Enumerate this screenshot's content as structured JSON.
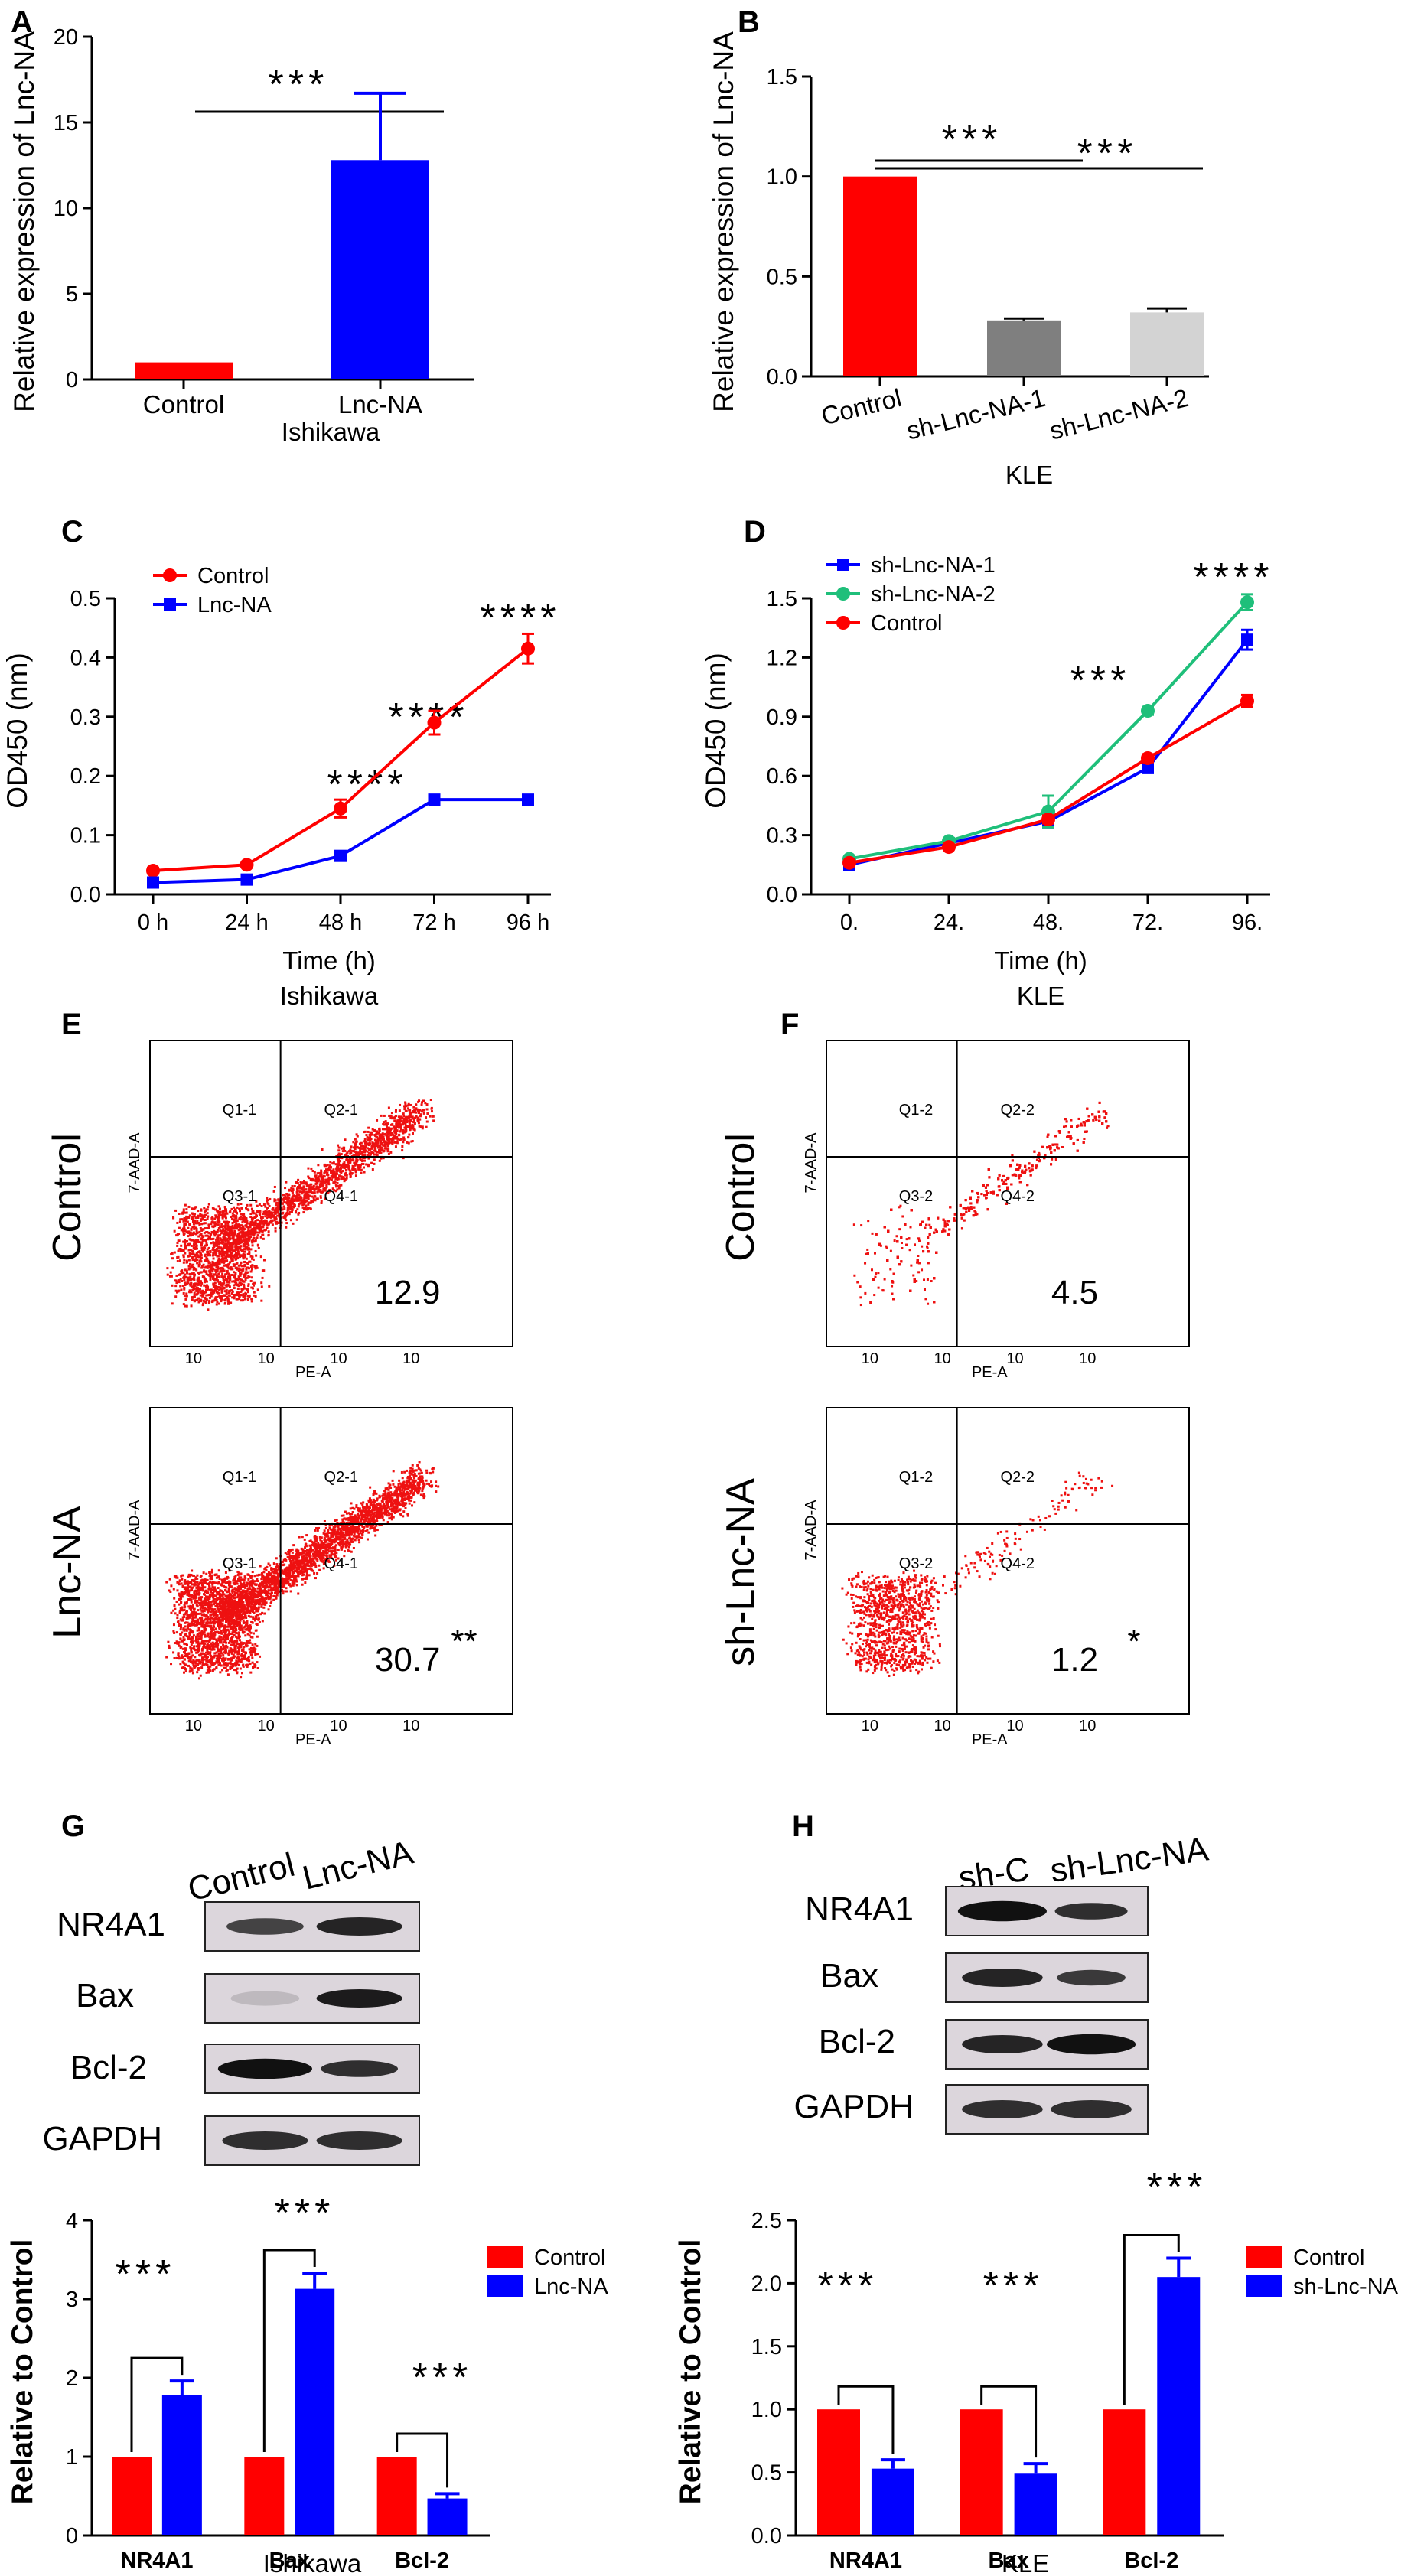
{
  "panels": {
    "A": {
      "label": "A",
      "ylabel": "Relative expression of Lnc-NA",
      "xlabel": "Ishikawa",
      "sig": "***"
    },
    "B": {
      "label": "B",
      "ylabel": "Relative expression of Lnc-NA",
      "xlabel": "KLE",
      "sig1": "***",
      "sig2": "***"
    },
    "C": {
      "label": "C",
      "ylabel": "OD450 (nm)",
      "xlabel": "Time (h)",
      "sublabel": "Ishikawa",
      "sig": [
        "****",
        "****",
        "****"
      ]
    },
    "D": {
      "label": "D",
      "ylabel": "OD450 (nm)",
      "xlabel": "Time (h)",
      "sublabel": "KLE",
      "sig": [
        "***",
        "****"
      ]
    },
    "E": {
      "label": "E",
      "row1": "Control",
      "row2": "Lnc-NA",
      "gates1": [
        "Q1-1",
        "Q2-1",
        "Q3-1",
        "Q4-1"
      ],
      "gates2": [
        "Q1-1",
        "Q2-1",
        "Q3-1",
        "Q4-1"
      ],
      "pct1": "12.9",
      "pct2": "30.7",
      "sig2": "**",
      "xaxis": "PE-A",
      "yaxis": "7-AAD-A"
    },
    "F": {
      "label": "F",
      "row1": "Control",
      "row2": "sh-Lnc-NA",
      "gates1": [
        "Q1-2",
        "Q2-2",
        "Q3-2",
        "Q4-2"
      ],
      "gates2": [
        "Q1-2",
        "Q2-2",
        "Q3-2",
        "Q4-2"
      ],
      "pct1": "4.5",
      "pct2": "1.2",
      "sig2": "*",
      "xaxis": "PE-A",
      "yaxis": "7-AAD-A"
    },
    "G": {
      "label": "G",
      "lanes": [
        "Control",
        "Lnc-NA"
      ],
      "proteins": [
        "NR4A1",
        "Bax",
        "Bcl-2",
        "GAPDH"
      ]
    },
    "H": {
      "label": "H",
      "lanes": [
        "sh-C",
        "sh-Lnc-NA"
      ],
      "proteins": [
        "NR4A1",
        "Bax",
        "Bcl-2",
        "GAPDH"
      ]
    },
    "I": {
      "ylabel": "Relative to Control",
      "xlabel": "Ishikawa",
      "sig": [
        "***",
        "***",
        "***"
      ]
    },
    "J": {
      "ylabel": "Relative to Control",
      "xlabel": "KLE",
      "sig": [
        "***",
        "***",
        "***"
      ]
    }
  },
  "colors": {
    "red": "#ff0000",
    "blue": "#0000ff",
    "green": "#1fbf7a",
    "darkgray": "#7f7f7f",
    "lightgray": "#d3d3d3",
    "dot": "#ee1111"
  },
  "chart_data": [
    {
      "id": "A",
      "type": "bar",
      "categories": [
        "Control",
        "Lnc-NA"
      ],
      "values": [
        1.0,
        12.8
      ],
      "errors": [
        0,
        3.9
      ],
      "colors": [
        "#ff0000",
        "#0000ff"
      ],
      "ylim": [
        0,
        20
      ],
      "yticks": [
        0,
        5,
        10,
        15,
        20
      ]
    },
    {
      "id": "B",
      "type": "bar",
      "categories": [
        "Control",
        "sh-Lnc-NA-1",
        "sh-Lnc-NA-2"
      ],
      "values": [
        1.0,
        0.28,
        0.32
      ],
      "errors": [
        0,
        0.01,
        0.02
      ],
      "colors": [
        "#ff0000",
        "#7f7f7f",
        "#d3d3d3"
      ],
      "ylim": [
        0,
        1.5
      ],
      "yticks": [
        "0.0",
        "0.5",
        "1.0",
        "1.5"
      ]
    },
    {
      "id": "C",
      "type": "line",
      "x": [
        "0 h",
        "24 h",
        "48 h",
        "72 h",
        "96 h"
      ],
      "ylim": [
        0,
        0.5
      ],
      "yticks": [
        "0.0",
        "0.1",
        "0.2",
        "0.3",
        "0.4",
        "0.5"
      ],
      "legend": "top-left",
      "series": [
        {
          "name": "Control",
          "values": [
            0.04,
            0.05,
            0.145,
            0.29,
            0.415
          ],
          "errors": [
            0.005,
            0.004,
            0.015,
            0.02,
            0.025
          ],
          "color": "#ff0000",
          "marker": "circle"
        },
        {
          "name": "Lnc-NA",
          "values": [
            0.02,
            0.025,
            0.065,
            0.16,
            0.16
          ],
          "errors": [
            0.003,
            0.003,
            0.006,
            0.005,
            0.004
          ],
          "color": "#0000ff",
          "marker": "square"
        }
      ]
    },
    {
      "id": "D",
      "type": "line",
      "x": [
        "0.",
        "24.",
        "48.",
        "72.",
        "96."
      ],
      "ylim": [
        0,
        1.5
      ],
      "yticks": [
        "0.0",
        "0.3",
        "0.6",
        "0.9",
        "1.2",
        "1.5"
      ],
      "legend": "top-left",
      "series": [
        {
          "name": "sh-Lnc-NA-1",
          "values": [
            0.15,
            0.26,
            0.37,
            0.64,
            1.29
          ],
          "errors": [
            0.01,
            0.01,
            0.03,
            0.02,
            0.05
          ],
          "color": "#0000ff",
          "marker": "square"
        },
        {
          "name": "sh-Lnc-NA-2",
          "values": [
            0.18,
            0.27,
            0.42,
            0.93,
            1.48
          ],
          "errors": [
            0.01,
            0.015,
            0.08,
            0.02,
            0.04
          ],
          "color": "#1fbf7a",
          "marker": "circle"
        },
        {
          "name": "Control",
          "values": [
            0.16,
            0.24,
            0.38,
            0.69,
            0.98
          ],
          "errors": [
            0.01,
            0.01,
            0.02,
            0.02,
            0.03
          ],
          "color": "#ff0000",
          "marker": "circle"
        }
      ]
    },
    {
      "id": "I",
      "type": "bar",
      "categories": [
        "NR4A1",
        "Bax",
        "Bcl-2"
      ],
      "ylim": [
        0,
        4
      ],
      "yticks": [
        0,
        1,
        2,
        3,
        4
      ],
      "legend": "top-right",
      "series": [
        {
          "name": "Control",
          "values": [
            1.0,
            1.0,
            1.0
          ],
          "errors": [
            0,
            0,
            0
          ],
          "color": "#ff0000"
        },
        {
          "name": "Lnc-NA",
          "values": [
            1.78,
            3.13,
            0.47
          ],
          "errors": [
            0.18,
            0.2,
            0.06
          ],
          "color": "#0000ff"
        }
      ]
    },
    {
      "id": "J",
      "type": "bar",
      "categories": [
        "NR4A1",
        "Bax",
        "Bcl-2"
      ],
      "ylim": [
        0,
        2.5
      ],
      "yticks": [
        "0.0",
        "0.5",
        "1.0",
        "1.5",
        "2.0",
        "2.5"
      ],
      "legend": "top-right",
      "series": [
        {
          "name": "Control",
          "values": [
            1.0,
            1.0,
            1.0
          ],
          "errors": [
            0,
            0,
            0
          ],
          "color": "#ff0000"
        },
        {
          "name": "sh-Lnc-NA",
          "values": [
            0.53,
            0.49,
            2.05
          ],
          "errors": [
            0.07,
            0.08,
            0.15
          ],
          "color": "#0000ff"
        }
      ]
    }
  ]
}
